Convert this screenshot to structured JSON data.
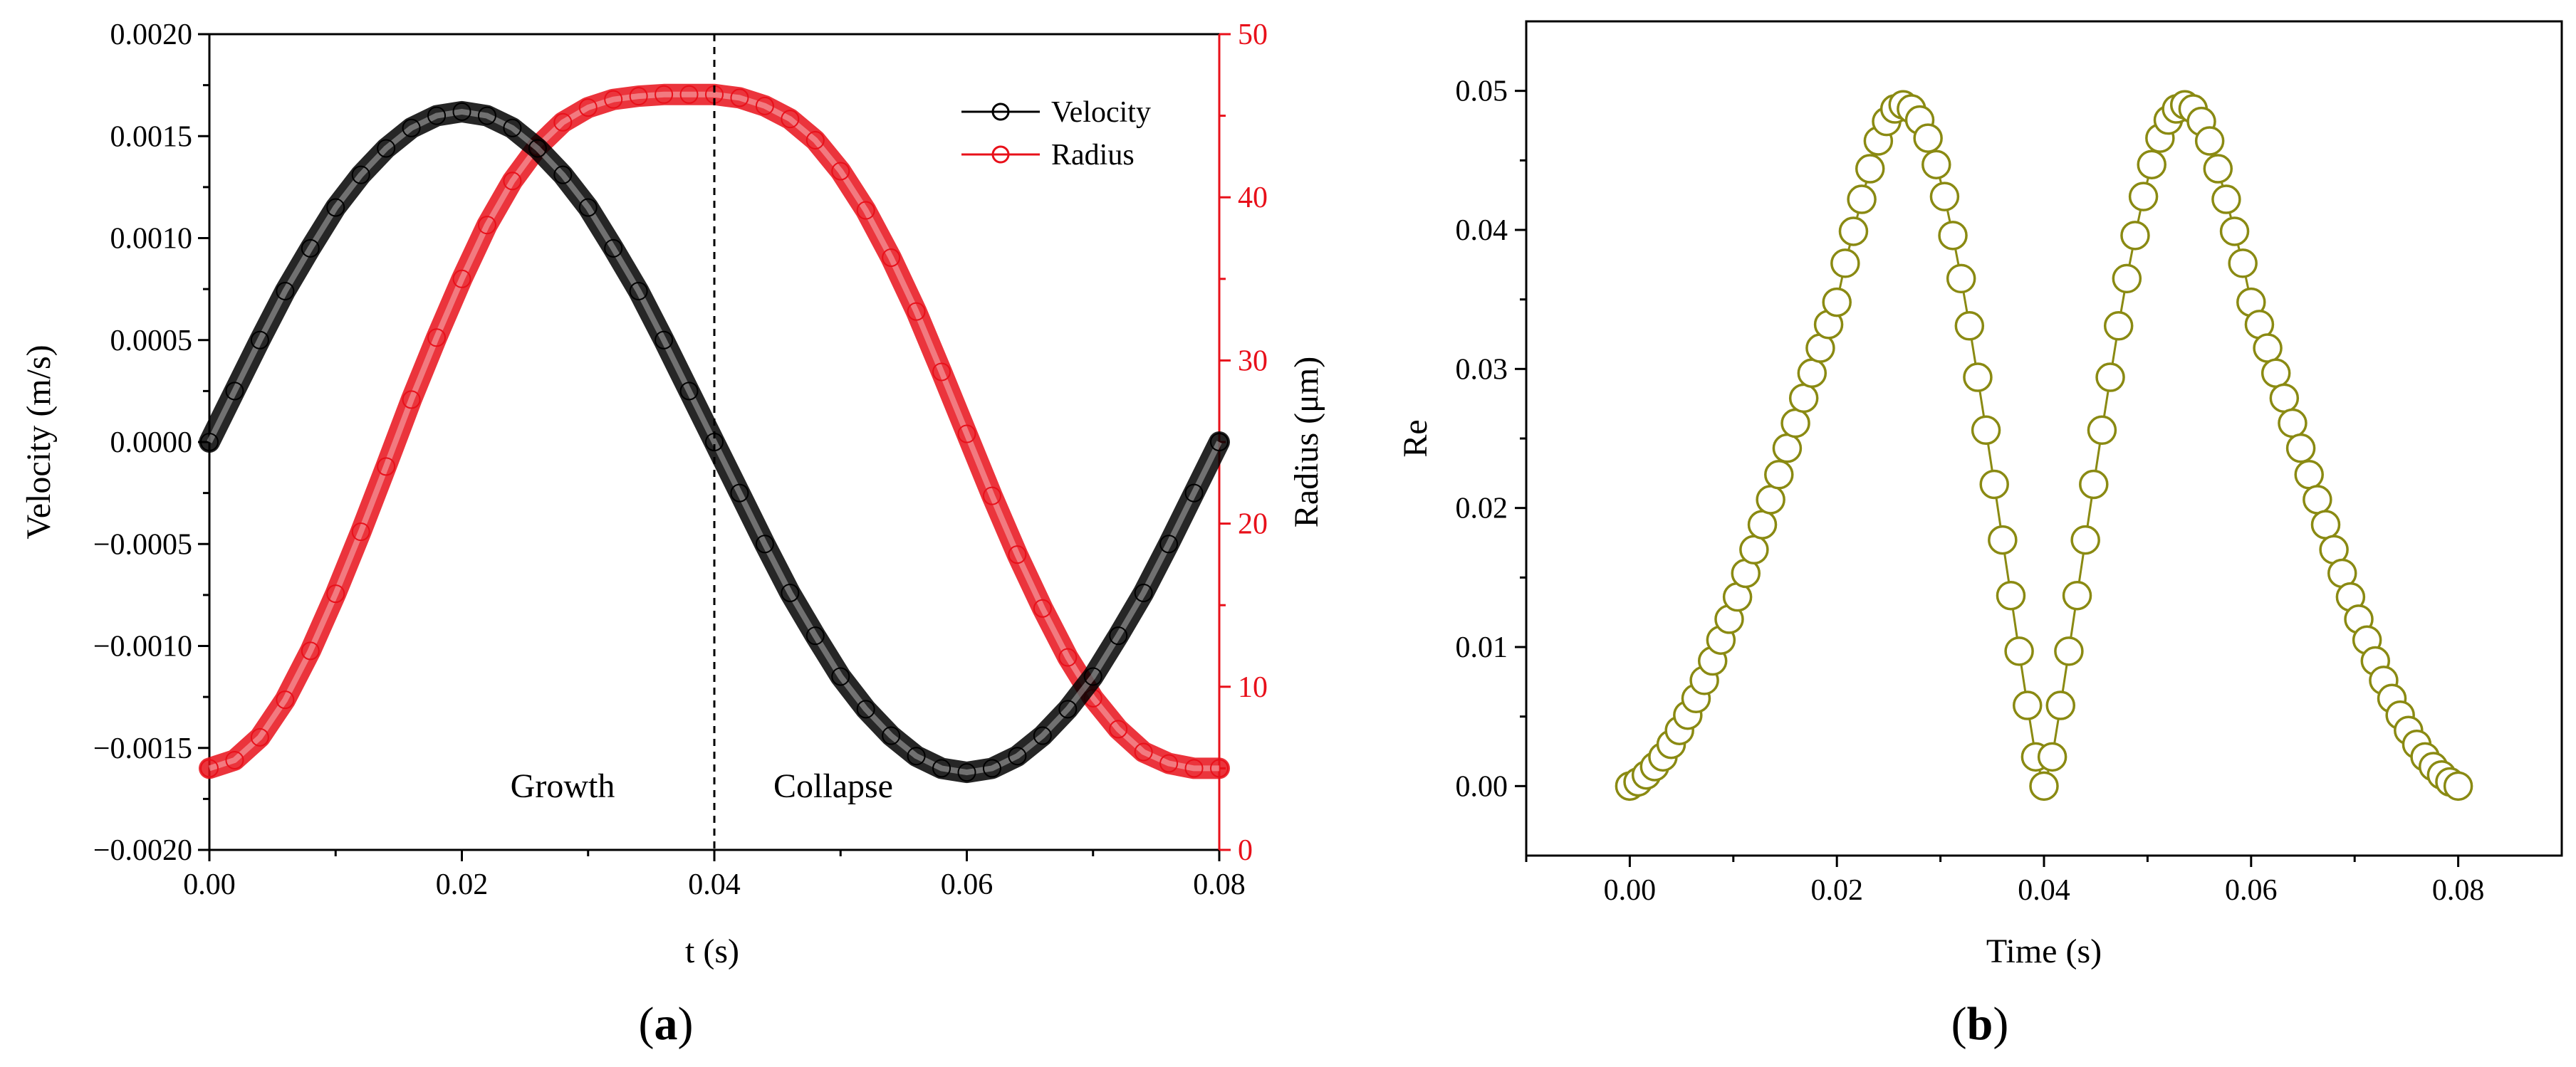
{
  "chart_data": [
    {
      "type": "line",
      "panel_label": [
        "(",
        "a",
        ")"
      ],
      "xlabel": "t (s)",
      "ylabel": "Velocity (m/s)",
      "y2label": "Radius (μm)",
      "xlim": [
        0.0,
        0.08
      ],
      "ylim": [
        -0.002,
        0.002
      ],
      "y2lim": [
        0,
        50
      ],
      "x_ticks": [
        "0.00",
        "0.02",
        "0.04",
        "0.06",
        "0.08"
      ],
      "y_ticks": [
        "0.0020",
        "0.0015",
        "0.0010",
        "0.0005",
        "0.0000",
        "−0.0005",
        "−0.0010",
        "−0.0015",
        "−0.0020"
      ],
      "y2_ticks": [
        "50",
        "40",
        "30",
        "20",
        "10",
        "0"
      ],
      "grid": false,
      "legend_position": "top-right",
      "colors": {
        "velocity": "#000000",
        "radius": "#e8101a",
        "axis2": "#e8101a"
      },
      "series": [
        {
          "name": "Velocity",
          "axis": "left",
          "x": [
            0.0,
            0.002,
            0.004,
            0.006,
            0.008,
            0.01,
            0.012,
            0.014,
            0.016,
            0.018,
            0.02,
            0.022,
            0.024,
            0.026,
            0.028,
            0.03,
            0.032,
            0.034,
            0.036,
            0.038,
            0.04,
            0.042,
            0.044,
            0.046,
            0.048,
            0.05,
            0.052,
            0.054,
            0.056,
            0.058,
            0.06,
            0.062,
            0.064,
            0.066,
            0.068,
            0.07,
            0.072,
            0.074,
            0.076,
            0.078,
            0.08
          ],
          "y": [
            0.0,
            0.00025,
            0.0005,
            0.00074,
            0.00095,
            0.00115,
            0.00131,
            0.00144,
            0.00154,
            0.0016,
            0.00162,
            0.0016,
            0.00154,
            0.00144,
            0.00131,
            0.00115,
            0.00095,
            0.00074,
            0.0005,
            0.00025,
            0.0,
            -0.00025,
            -0.0005,
            -0.00074,
            -0.00095,
            -0.00115,
            -0.00131,
            -0.00144,
            -0.00154,
            -0.0016,
            -0.00162,
            -0.0016,
            -0.00154,
            -0.00144,
            -0.00131,
            -0.00115,
            -0.00095,
            -0.00074,
            -0.0005,
            -0.00025,
            0.0
          ]
        },
        {
          "name": "Radius",
          "axis": "right",
          "x": [
            0.0,
            0.002,
            0.004,
            0.006,
            0.008,
            0.01,
            0.012,
            0.014,
            0.016,
            0.018,
            0.02,
            0.022,
            0.024,
            0.026,
            0.028,
            0.03,
            0.032,
            0.034,
            0.036,
            0.038,
            0.04,
            0.042,
            0.044,
            0.046,
            0.048,
            0.05,
            0.052,
            0.054,
            0.056,
            0.058,
            0.06,
            0.062,
            0.064,
            0.066,
            0.068,
            0.07,
            0.072,
            0.074,
            0.076,
            0.078,
            0.08
          ],
          "y": [
            5.0,
            5.5,
            6.9,
            9.2,
            12.2,
            15.7,
            19.5,
            23.5,
            27.6,
            31.4,
            35.0,
            38.3,
            41.0,
            43.1,
            44.6,
            45.5,
            46.0,
            46.2,
            46.3,
            46.3,
            46.3,
            46.1,
            45.6,
            44.8,
            43.5,
            41.6,
            39.2,
            36.3,
            33.0,
            29.3,
            25.5,
            21.7,
            18.1,
            14.8,
            11.8,
            9.3,
            7.4,
            6.0,
            5.3,
            5.0,
            5.0
          ]
        }
      ],
      "annotations": [
        "Growth",
        "Collapse"
      ],
      "vline_x": 0.04
    },
    {
      "type": "scatter",
      "panel_label": [
        "(",
        "b",
        ")"
      ],
      "xlabel": "Time (s)",
      "ylabel": "Re",
      "xlim": [
        -0.01,
        0.09
      ],
      "ylim": [
        -0.005,
        0.055
      ],
      "x_ticks": [
        "0.00",
        "0.02",
        "0.04",
        "0.06",
        "0.08"
      ],
      "y_ticks": [
        "0.05",
        "0.04",
        "0.03",
        "0.02",
        "0.01",
        "0.00"
      ],
      "grid": false,
      "colors": {
        "marker": "#8a8a12"
      },
      "series": [
        {
          "x": [
            0.0,
            0.0008,
            0.0016,
            0.0024,
            0.0032,
            0.004,
            0.0048,
            0.0056,
            0.0064,
            0.0072,
            0.008,
            0.0088,
            0.0096,
            0.0104,
            0.0112,
            0.012,
            0.0128,
            0.0136,
            0.0144,
            0.0152,
            0.016,
            0.0168,
            0.0176,
            0.0184,
            0.0192,
            0.02,
            0.0208,
            0.0216,
            0.0224,
            0.0232,
            0.024,
            0.0248,
            0.0256,
            0.0264,
            0.0272,
            0.028,
            0.0288,
            0.0296,
            0.0304,
            0.0312,
            0.032,
            0.0328,
            0.0336,
            0.0344,
            0.0352,
            0.036,
            0.0368,
            0.0376,
            0.0384,
            0.0392,
            0.04,
            0.0408,
            0.0416,
            0.0424,
            0.0432,
            0.044,
            0.0448,
            0.0456,
            0.0464,
            0.0472,
            0.048,
            0.0488,
            0.0496,
            0.0504,
            0.0512,
            0.052,
            0.0528,
            0.0536,
            0.0544,
            0.0552,
            0.056,
            0.0568,
            0.0576,
            0.0584,
            0.0592,
            0.06,
            0.0608,
            0.0616,
            0.0624,
            0.0632,
            0.064,
            0.0648,
            0.0656,
            0.0664,
            0.0672,
            0.068,
            0.0688,
            0.0696,
            0.0704,
            0.0712,
            0.072,
            0.0728,
            0.0736,
            0.0744,
            0.0752,
            0.076,
            0.0768,
            0.0776,
            0.0784,
            0.0792,
            0.08
          ],
          "y": [
            0.0,
            0.0003,
            0.0008,
            0.0014,
            0.0021,
            0.003,
            0.004,
            0.0051,
            0.0063,
            0.0076,
            0.009,
            0.0105,
            0.012,
            0.0136,
            0.0153,
            0.017,
            0.0188,
            0.0206,
            0.0224,
            0.0243,
            0.0261,
            0.0279,
            0.0297,
            0.0315,
            0.0332,
            0.0348,
            0.0376,
            0.0399,
            0.0422,
            0.0444,
            0.0464,
            0.0478,
            0.0487,
            0.049,
            0.0487,
            0.0479,
            0.0466,
            0.0447,
            0.0424,
            0.0396,
            0.0365,
            0.0331,
            0.0294,
            0.0256,
            0.0217,
            0.0177,
            0.0137,
            0.0097,
            0.0058,
            0.0021,
            0.0,
            0.0021,
            0.0058,
            0.0097,
            0.0137,
            0.0177,
            0.0217,
            0.0256,
            0.0294,
            0.0331,
            0.0365,
            0.0396,
            0.0424,
            0.0447,
            0.0466,
            0.0479,
            0.0487,
            0.049,
            0.0487,
            0.0478,
            0.0464,
            0.0444,
            0.0422,
            0.0399,
            0.0376,
            0.0348,
            0.0332,
            0.0315,
            0.0297,
            0.0279,
            0.0261,
            0.0243,
            0.0224,
            0.0206,
            0.0188,
            0.017,
            0.0153,
            0.0136,
            0.012,
            0.0105,
            0.009,
            0.0076,
            0.0063,
            0.0051,
            0.004,
            0.003,
            0.0021,
            0.0014,
            0.0008,
            0.0003,
            0.0
          ]
        }
      ]
    }
  ]
}
